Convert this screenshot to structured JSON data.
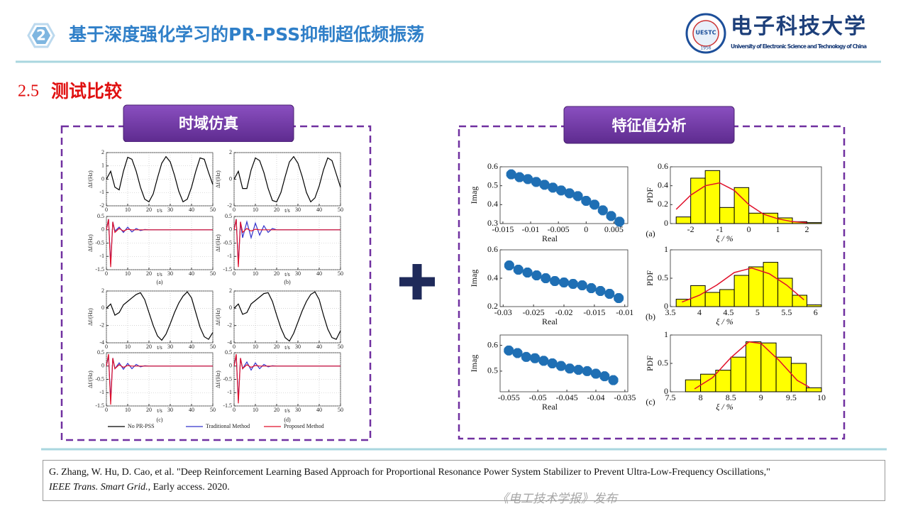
{
  "header": {
    "number": "2",
    "title": "基于深度强化学习的PR-PSS抑制超低频振荡",
    "logo_name": "电子科技大学",
    "logo_english": "University of Electronic Science and Technology of China",
    "logo_abbr": "UESTC",
    "logo_year": "1956"
  },
  "section": {
    "number": "2.5",
    "title": "测试比较"
  },
  "panels": {
    "left": "时域仿真",
    "right": "特征值分析"
  },
  "time_domain": {
    "ylabel": "Δf/(Hz)",
    "xlabel": "t/s",
    "xlim": [
      0,
      50
    ],
    "xticks": [
      0,
      10,
      20,
      30,
      40,
      50
    ],
    "captions": [
      "(a)",
      "(b)",
      "(c)",
      "(d)"
    ],
    "legend": [
      {
        "name": "No PR-PSS",
        "color": "#000000"
      },
      {
        "name": "Traditional Method",
        "color": "#3333cc"
      },
      {
        "name": "Proposed Method",
        "color": "#e0102a"
      }
    ],
    "plots": [
      {
        "ylim": [
          -2,
          2
        ],
        "yticks": [
          -2,
          -1,
          0,
          1,
          2
        ],
        "x": [
          0,
          2,
          4,
          6,
          8,
          10,
          12,
          14,
          16,
          18,
          20,
          22,
          24,
          26,
          28,
          30,
          32,
          34,
          36,
          38,
          40,
          42,
          44,
          46,
          48,
          50
        ],
        "series": [
          {
            "color": "#000000",
            "values": [
              0,
              0.6,
              -0.6,
              -0.8,
              0.6,
              1.65,
              1.5,
              0.6,
              -0.6,
              -1.5,
              -1.7,
              -1.1,
              0.1,
              1.2,
              1.7,
              1.3,
              0.3,
              -0.9,
              -1.7,
              -1.5,
              -0.6,
              0.6,
              1.6,
              1.5,
              0.5,
              -0.4
            ]
          }
        ]
      },
      {
        "ylim": [
          -2,
          2
        ],
        "yticks": [
          -2,
          0,
          2
        ],
        "x": [
          0,
          2,
          4,
          6,
          8,
          10,
          12,
          14,
          16,
          18,
          20,
          22,
          24,
          26,
          28,
          30,
          32,
          34,
          36,
          38,
          40,
          42,
          44,
          46,
          48,
          50
        ],
        "series": [
          {
            "color": "#000000",
            "values": [
              0,
              0.6,
              -0.7,
              -0.7,
              0.7,
              1.6,
              1.4,
              0.5,
              -0.7,
              -1.6,
              -1.7,
              -1.0,
              0.2,
              1.3,
              1.7,
              1.2,
              0.2,
              -1.0,
              -1.7,
              -1.4,
              -0.5,
              0.7,
              1.6,
              1.4,
              0.4,
              -0.6
            ]
          }
        ]
      },
      {
        "ylim": [
          -1.5,
          0.5
        ],
        "yticks": [
          -1.5,
          -1,
          -0.5,
          0,
          0.5
        ],
        "x": [
          0,
          1,
          2,
          3,
          4,
          6,
          8,
          10,
          12,
          14,
          16,
          18,
          20,
          25,
          30,
          40,
          50
        ],
        "series": [
          {
            "color": "#3333cc",
            "values": [
              0,
              0.4,
              -1.3,
              0.3,
              -0.05,
              0.1,
              -0.1,
              0.1,
              -0.08,
              0.05,
              -0.03,
              0.01,
              0,
              0,
              0,
              0,
              0
            ]
          },
          {
            "color": "#e0102a",
            "values": [
              0,
              0.4,
              -1.4,
              0.3,
              -0.1,
              0.05,
              -0.05,
              0.02,
              0,
              0,
              0,
              0,
              0,
              0,
              0,
              0,
              0
            ]
          }
        ]
      },
      {
        "ylim": [
          -1.5,
          0.5
        ],
        "yticks": [
          -1.5,
          -1,
          -0.5,
          0,
          0.5
        ],
        "x": [
          0,
          1,
          2,
          3,
          4,
          6,
          8,
          10,
          12,
          14,
          16,
          18,
          20,
          25,
          30,
          40,
          50
        ],
        "series": [
          {
            "color": "#3333cc",
            "values": [
              0,
              0.4,
              -1.3,
              0.3,
              -0.3,
              0.3,
              -0.3,
              0.25,
              -0.2,
              0.15,
              -0.1,
              0.05,
              0,
              0,
              0,
              0,
              0
            ]
          },
          {
            "color": "#e0102a",
            "values": [
              0,
              0.4,
              -1.4,
              0.3,
              -0.1,
              0.05,
              -0.05,
              0.02,
              0,
              0,
              0,
              0,
              0,
              0,
              0,
              0,
              0
            ]
          }
        ]
      },
      {
        "ylim": [
          -4,
          2
        ],
        "yticks": [
          -4,
          -2,
          0,
          2
        ],
        "x": [
          0,
          2,
          4,
          6,
          8,
          10,
          12,
          14,
          16,
          18,
          20,
          22,
          24,
          26,
          28,
          30,
          32,
          34,
          36,
          38,
          40,
          42,
          44,
          46,
          48,
          50
        ],
        "series": [
          {
            "color": "#000000",
            "values": [
              0,
              0.5,
              -0.8,
              -0.5,
              0.4,
              0.8,
              1.2,
              1.6,
              1.8,
              1.0,
              -0.5,
              -2.0,
              -3.2,
              -3.7,
              -3.0,
              -1.8,
              -0.5,
              0.6,
              1.4,
              1.9,
              1.2,
              -0.5,
              -2.2,
              -3.3,
              -3.6,
              -2.8
            ]
          }
        ]
      },
      {
        "ylim": [
          -4,
          2
        ],
        "yticks": [
          -4,
          -2,
          0,
          2
        ],
        "x": [
          0,
          2,
          4,
          6,
          8,
          10,
          12,
          14,
          16,
          18,
          20,
          22,
          24,
          26,
          28,
          30,
          32,
          34,
          36,
          38,
          40,
          42,
          44,
          46,
          48,
          50
        ],
        "series": [
          {
            "color": "#000000",
            "values": [
              0,
              0.5,
              -0.7,
              -0.5,
              0.5,
              0.9,
              1.3,
              1.7,
              1.8,
              0.8,
              -0.8,
              -2.3,
              -3.4,
              -3.8,
              -2.9,
              -1.6,
              -0.3,
              0.8,
              1.6,
              1.9,
              1.0,
              -0.8,
              -2.4,
              -3.4,
              -3.6,
              -2.6
            ]
          }
        ]
      },
      {
        "ylim": [
          -1.5,
          0.5
        ],
        "yticks": [
          -1.5,
          -1,
          -0.5,
          0,
          0.5
        ],
        "x": [
          0,
          1,
          2,
          3,
          4,
          6,
          8,
          10,
          12,
          14,
          16,
          18,
          20,
          25,
          30,
          40,
          50
        ],
        "series": [
          {
            "color": "#3333cc",
            "values": [
              0,
              0.4,
              -1.3,
              0.3,
              -0.1,
              0.12,
              -0.12,
              0.1,
              -0.1,
              0.06,
              -0.03,
              0.01,
              0,
              0,
              0,
              0,
              0
            ]
          },
          {
            "color": "#e0102a",
            "values": [
              0,
              0.45,
              -1.45,
              0.3,
              -0.1,
              0.05,
              -0.05,
              0.02,
              0,
              0,
              0,
              0,
              0,
              0,
              0,
              0,
              0
            ]
          }
        ]
      },
      {
        "ylim": [
          -1.5,
          0.5
        ],
        "yticks": [
          -1.5,
          -1,
          -0.5,
          0,
          0.5
        ],
        "x": [
          0,
          1,
          2,
          3,
          4,
          6,
          8,
          10,
          12,
          14,
          16,
          18,
          20,
          25,
          30,
          40,
          50
        ],
        "series": [
          {
            "color": "#3333cc",
            "values": [
              0,
              0.4,
              -1.3,
              0.3,
              -0.1,
              0.15,
              -0.15,
              0.12,
              -0.1,
              0.06,
              -0.03,
              0.01,
              0,
              0,
              0,
              0,
              0
            ]
          },
          {
            "color": "#e0102a",
            "values": [
              0,
              0.45,
              -1.4,
              0.3,
              -0.1,
              0.05,
              -0.05,
              0.02,
              0,
              0,
              0,
              0,
              0,
              0,
              0,
              0,
              0
            ]
          }
        ]
      }
    ]
  },
  "eigen": {
    "real_label": "Real",
    "imag_label": "Imag",
    "pdf_label": "PDF",
    "xi_label": "ξ / %",
    "captions": [
      "(a)",
      "(b)",
      "(c)"
    ],
    "star_color": "#1f6fb4",
    "bar_color": "#ffff00",
    "fit_color": "#e0102a",
    "scatter": [
      {
        "xlim": [
          -0.0155,
          0.0075
        ],
        "xticks": [
          -0.015,
          -0.01,
          -0.005,
          0,
          0.005
        ],
        "ylim": [
          0.3,
          0.6
        ],
        "yticks": [
          0.3,
          0.4,
          0.5,
          0.6
        ],
        "x": [
          -0.0135,
          -0.012,
          -0.0105,
          -0.009,
          -0.0075,
          -0.006,
          -0.0045,
          -0.003,
          -0.0015,
          0,
          0.0015,
          0.003,
          0.0045,
          0.006
        ],
        "y": [
          0.56,
          0.545,
          0.535,
          0.52,
          0.505,
          0.49,
          0.475,
          0.46,
          0.445,
          0.42,
          0.4,
          0.37,
          0.34,
          0.31
        ]
      },
      {
        "xlim": [
          -0.0305,
          -0.0095
        ],
        "xticks": [
          -0.03,
          -0.025,
          -0.02,
          -0.015,
          -0.01
        ],
        "ylim": [
          0.2,
          0.6
        ],
        "yticks": [
          0.2,
          0.4,
          0.6
        ],
        "x": [
          -0.029,
          -0.0275,
          -0.026,
          -0.0245,
          -0.023,
          -0.0215,
          -0.02,
          -0.0185,
          -0.017,
          -0.0155,
          -0.014,
          -0.0125,
          -0.011
        ],
        "y": [
          0.49,
          0.46,
          0.44,
          0.42,
          0.4,
          0.38,
          0.37,
          0.36,
          0.35,
          0.33,
          0.31,
          0.29,
          0.26
        ]
      },
      {
        "xlim": [
          -0.0565,
          -0.0345
        ],
        "xticks": [
          -0.055,
          -0.05,
          -0.045,
          -0.04,
          -0.035
        ],
        "ylim": [
          0.42,
          0.64
        ],
        "yticks": [
          0.5,
          0.6
        ],
        "x": [
          -0.055,
          -0.0535,
          -0.052,
          -0.0505,
          -0.049,
          -0.0475,
          -0.046,
          -0.0445,
          -0.043,
          -0.0415,
          -0.04,
          -0.0385,
          -0.037
        ],
        "y": [
          0.58,
          0.57,
          0.555,
          0.55,
          0.54,
          0.53,
          0.52,
          0.51,
          0.505,
          0.5,
          0.49,
          0.48,
          0.465
        ]
      }
    ],
    "hist": [
      {
        "xlim": [
          -2.7,
          2.5
        ],
        "xticks": [
          -2,
          -1,
          0,
          1,
          2
        ],
        "ylim": [
          0,
          0.6
        ],
        "yticks": [
          0,
          0.2,
          0.4,
          0.6
        ],
        "bins": [
          -2.5,
          -2,
          -1.5,
          -1,
          -0.5,
          0,
          0.5,
          1,
          1.5,
          2,
          2.5
        ],
        "counts": [
          0.07,
          0.48,
          0.56,
          0.17,
          0.38,
          0.11,
          0.11,
          0.06,
          0.02,
          0.01
        ],
        "fit_x": [
          -2.5,
          -2,
          -1.5,
          -1,
          -0.5,
          0,
          0.5,
          1,
          1.5,
          2
        ],
        "fit_y": [
          0.15,
          0.3,
          0.4,
          0.43,
          0.35,
          0.2,
          0.1,
          0.05,
          0.02,
          0.01
        ]
      },
      {
        "xlim": [
          3.5,
          6.1
        ],
        "xticks": [
          3.5,
          4,
          4.5,
          5,
          5.5,
          6
        ],
        "ylim": [
          0,
          1
        ],
        "yticks": [
          0,
          0.5,
          1
        ],
        "bins": [
          3.6,
          3.85,
          4.1,
          4.35,
          4.6,
          4.85,
          5.1,
          5.35,
          5.6,
          5.85,
          6.1
        ],
        "counts": [
          0.13,
          0.37,
          0.25,
          0.3,
          0.55,
          0.7,
          0.78,
          0.5,
          0.2,
          0.03
        ],
        "fit_x": [
          3.7,
          4,
          4.3,
          4.6,
          4.9,
          5.2,
          5.5,
          5.8
        ],
        "fit_y": [
          0.08,
          0.2,
          0.38,
          0.6,
          0.68,
          0.58,
          0.38,
          0.12
        ]
      },
      {
        "xlim": [
          7.5,
          10
        ],
        "xticks": [
          7.5,
          8,
          8.5,
          9,
          9.5,
          10
        ],
        "ylim": [
          0,
          1
        ],
        "yticks": [
          0,
          0.5,
          1
        ],
        "bins": [
          7.75,
          8,
          8.25,
          8.5,
          8.75,
          9,
          9.25,
          9.5,
          9.75,
          10
        ],
        "counts": [
          0.21,
          0.31,
          0.38,
          0.61,
          0.88,
          0.86,
          0.61,
          0.5,
          0.07
        ],
        "fit_x": [
          7.9,
          8.2,
          8.5,
          8.8,
          9,
          9.3,
          9.6,
          9.8
        ],
        "fit_y": [
          0.05,
          0.25,
          0.6,
          0.88,
          0.85,
          0.55,
          0.2,
          0.08
        ]
      }
    ]
  },
  "reference": {
    "line1": "G. Zhang, W. Hu, D. Cao, et al. \"Deep Reinforcement Learning Based Approach for Proportional Resonance Power System Stabilizer to Prevent Ultra-Low-Frequency Oscillations,\"",
    "journal": "IEEE Trans. Smart Grid.",
    "rest": ", Early access. 2020."
  },
  "watermark": "《电工技术学报》发布"
}
